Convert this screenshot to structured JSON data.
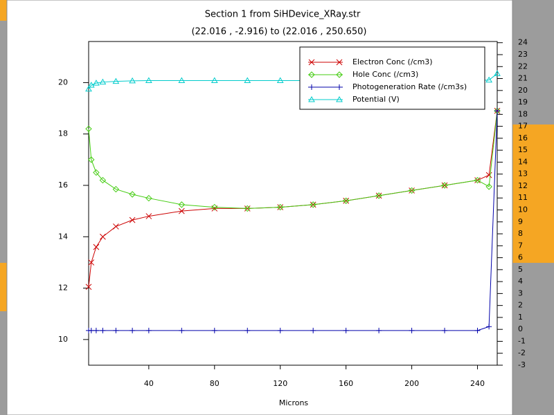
{
  "chart_data": {
    "type": "line",
    "title": "Section 1 from SiHDevice_XRay.str",
    "subtitle": "(22.016 , -2.916) to (22.016 , 250.650)",
    "x_label": "Microns",
    "x": [
      3.4,
      5,
      8,
      12,
      20,
      30,
      40,
      60,
      80,
      100,
      120,
      140,
      160,
      180,
      200,
      220,
      240,
      247,
      252
    ],
    "series": [
      {
        "name": "Electron Conc (/cm3)",
        "color": "#cc0000",
        "marker": "x",
        "values": [
          12.05,
          13.0,
          13.6,
          14.0,
          14.4,
          14.65,
          14.8,
          15.0,
          15.1,
          15.1,
          15.15,
          15.25,
          15.4,
          15.6,
          15.8,
          16.0,
          16.2,
          16.4,
          18.9
        ]
      },
      {
        "name": "Hole Conc (/cm3)",
        "color": "#44cc11",
        "marker": "diamond",
        "values": [
          18.2,
          17.0,
          16.5,
          16.2,
          15.85,
          15.65,
          15.5,
          15.25,
          15.15,
          15.1,
          15.15,
          15.25,
          15.4,
          15.6,
          15.8,
          16.0,
          16.2,
          15.95,
          18.9
        ]
      },
      {
        "name": "Photogeneration Rate (/cm3s)",
        "color": "#0000aa",
        "marker": "plus",
        "values": [
          10.35,
          10.35,
          10.35,
          10.35,
          10.35,
          10.35,
          10.35,
          10.35,
          10.35,
          10.35,
          10.35,
          10.35,
          10.35,
          10.35,
          10.35,
          10.35,
          10.35,
          10.5,
          18.9
        ]
      },
      {
        "name": "Potential (V)",
        "color": "#00cccc",
        "marker": "triangle",
        "values": [
          19.75,
          19.9,
          19.98,
          20.02,
          20.05,
          20.07,
          20.08,
          20.08,
          20.08,
          20.08,
          20.08,
          20.08,
          20.08,
          20.08,
          20.08,
          20.08,
          20.08,
          20.1,
          20.35
        ]
      }
    ],
    "xlim": [
      3.4,
      252
    ],
    "xticks": [
      40,
      80,
      120,
      160,
      200,
      240
    ],
    "ylim": [
      9,
      21.6
    ],
    "yticks": [
      10,
      12,
      14,
      16,
      18,
      20
    ],
    "y2lim": [
      -3,
      24.1
    ],
    "y2ticks": [
      -3,
      -2,
      -1,
      0,
      1,
      2,
      3,
      4,
      5,
      6,
      7,
      8,
      9,
      10,
      11,
      12,
      13,
      14,
      15,
      16,
      17,
      18,
      19,
      20,
      21,
      22,
      23,
      24
    ],
    "legend": "upper right"
  }
}
